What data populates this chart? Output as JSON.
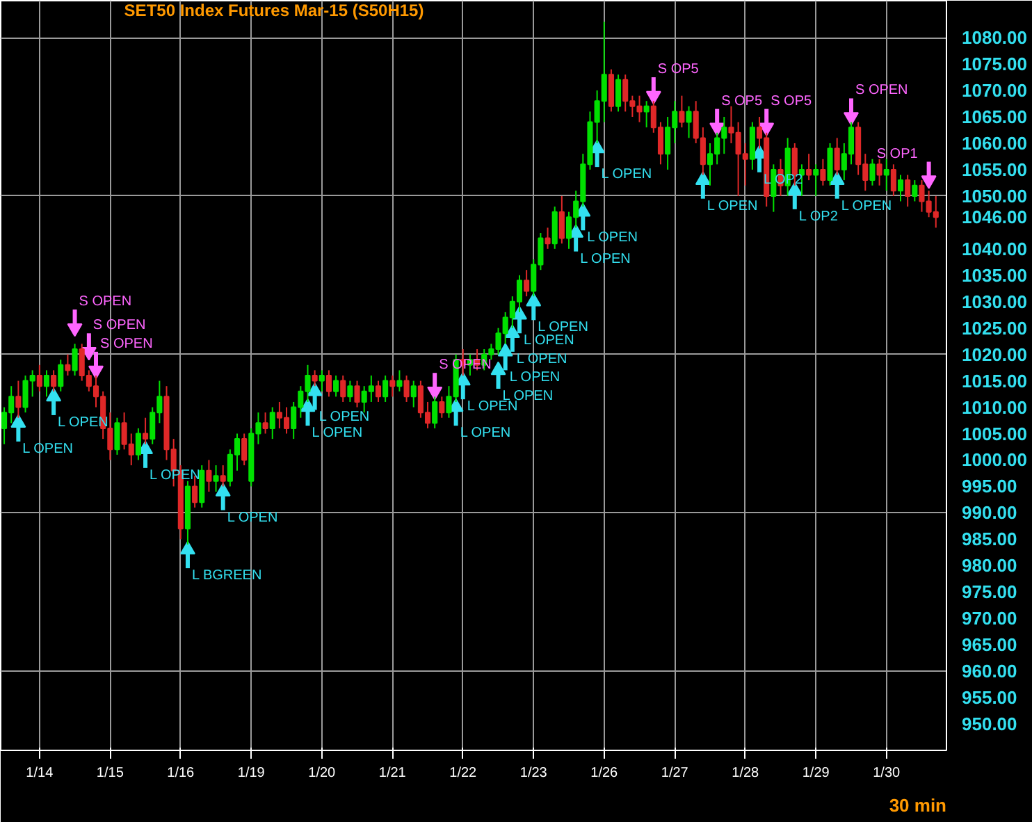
{
  "chart_data": {
    "type": "candlestick",
    "title": "SET50  Index Futures Mar-15  (S50H15)",
    "categories": [
      null,
      null,
      null,
      null,
      null,
      "1/14",
      null,
      null,
      null,
      null,
      null,
      null,
      null,
      null,
      null,
      "1/15",
      null,
      null,
      null,
      null,
      null,
      null,
      null,
      null,
      null,
      "1/16",
      null,
      null,
      null,
      null,
      null,
      null,
      null,
      null,
      null,
      "1/19",
      null,
      null,
      null,
      null,
      null,
      null,
      null,
      null,
      null,
      "1/20",
      null,
      null,
      null,
      null,
      null,
      null,
      null,
      null,
      null,
      "1/21",
      null,
      null,
      null,
      null,
      null,
      null,
      null,
      null,
      null,
      "1/22",
      null,
      null,
      null,
      null,
      null,
      null,
      null,
      null,
      null,
      "1/23",
      null,
      null,
      null,
      null,
      null,
      null,
      null,
      null,
      null,
      "1/26",
      null,
      null,
      null,
      null,
      null,
      null,
      null,
      null,
      null,
      "1/27",
      null,
      null,
      null,
      null,
      null,
      null,
      null,
      null,
      null,
      "1/28",
      null,
      null,
      null,
      null,
      null,
      null,
      null,
      null,
      null,
      "1/29",
      null,
      null,
      null,
      null,
      null,
      null,
      null,
      null,
      null,
      "1/30",
      null,
      null,
      null,
      null,
      null,
      null,
      null
    ],
    "ohlc": [
      [
        1006,
        1010,
        1003,
        1009
      ],
      [
        1009,
        1014,
        1007,
        1012
      ],
      [
        1012,
        1015,
        1008,
        1010
      ],
      [
        1010,
        1016,
        1009,
        1015
      ],
      [
        1015,
        1017,
        1012,
        1016
      ],
      [
        1016,
        1018,
        1013,
        1014
      ],
      [
        1014,
        1017,
        1012,
        1016
      ],
      [
        1016,
        1017,
        1013,
        1014
      ],
      [
        1014,
        1019,
        1013,
        1018
      ],
      [
        1018,
        1020,
        1016,
        1017
      ],
      [
        1017,
        1022,
        1016,
        1021
      ],
      [
        1021,
        1022,
        1015,
        1016
      ],
      [
        1016,
        1017,
        1013,
        1014
      ],
      [
        1014,
        1016,
        1010,
        1012
      ],
      [
        1012,
        1013,
        1004,
        1006
      ],
      [
        1006,
        1009,
        1000,
        1002
      ],
      [
        1002,
        1008,
        1001,
        1007
      ],
      [
        1007,
        1009,
        1002,
        1003
      ],
      [
        1003,
        1005,
        999,
        1001
      ],
      [
        1001,
        1006,
        1000,
        1005
      ],
      [
        1005,
        1008,
        1003,
        1004
      ],
      [
        1004,
        1010,
        1003,
        1009
      ],
      [
        1009,
        1015,
        1007,
        1012
      ],
      [
        1012,
        1014,
        1000,
        1002
      ],
      [
        1002,
        1004,
        995,
        998
      ],
      [
        998,
        999,
        985,
        987
      ],
      [
        987,
        996,
        984,
        995
      ],
      [
        995,
        997,
        991,
        992
      ],
      [
        992,
        999,
        991,
        998
      ],
      [
        998,
        1000,
        994,
        996
      ],
      [
        996,
        999,
        994,
        997
      ],
      [
        997,
        999,
        995,
        996
      ],
      [
        996,
        1002,
        995,
        1001
      ],
      [
        1001,
        1005,
        998,
        1004
      ],
      [
        1004,
        1005,
        999,
        1000
      ],
      [
        996,
        1006,
        995,
        1005
      ],
      [
        1005,
        1009,
        1003,
        1007
      ],
      [
        1007,
        1009,
        1005,
        1006
      ],
      [
        1006,
        1010,
        1004,
        1009
      ],
      [
        1009,
        1011,
        1006,
        1008
      ],
      [
        1008,
        1010,
        1005,
        1006
      ],
      [
        1006,
        1011,
        1004,
        1010
      ],
      [
        1010,
        1014,
        1008,
        1013
      ],
      [
        1013,
        1018,
        1011,
        1016
      ],
      [
        1016,
        1017,
        1014,
        1015
      ],
      [
        1015,
        1017,
        1013,
        1016
      ],
      [
        1016,
        1017,
        1012,
        1013
      ],
      [
        1013,
        1016,
        1012,
        1015
      ],
      [
        1015,
        1016,
        1011,
        1012
      ],
      [
        1012,
        1015,
        1011,
        1014
      ],
      [
        1014,
        1015,
        1010,
        1011
      ],
      [
        1011,
        1014,
        1009,
        1013
      ],
      [
        1013,
        1016,
        1011,
        1014
      ],
      [
        1014,
        1015,
        1011,
        1012
      ],
      [
        1012,
        1016,
        1011,
        1015
      ],
      [
        1015,
        1016,
        1012,
        1014
      ],
      [
        1014,
        1017,
        1013,
        1015
      ],
      [
        1015,
        1016,
        1011,
        1012
      ],
      [
        1012,
        1015,
        1010,
        1014
      ],
      [
        1014,
        1015,
        1008,
        1009
      ],
      [
        1009,
        1011,
        1006,
        1007
      ],
      [
        1007,
        1012,
        1006,
        1011
      ],
      [
        1011,
        1012,
        1008,
        1009
      ],
      [
        1009,
        1014,
        1008,
        1012
      ],
      [
        1012,
        1020,
        1011,
        1019
      ],
      [
        1019,
        1021,
        1016,
        1018
      ],
      [
        1018,
        1020,
        1016,
        1019
      ],
      [
        1019,
        1021,
        1017,
        1018
      ],
      [
        1018,
        1021,
        1017,
        1020
      ],
      [
        1020,
        1022,
        1019,
        1021
      ],
      [
        1021,
        1025,
        1020,
        1024
      ],
      [
        1024,
        1028,
        1022,
        1027
      ],
      [
        1027,
        1031,
        1025,
        1030
      ],
      [
        1030,
        1035,
        1028,
        1034
      ],
      [
        1034,
        1036,
        1031,
        1032
      ],
      [
        1032,
        1038,
        1031,
        1037
      ],
      [
        1037,
        1043,
        1036,
        1042
      ],
      [
        1042,
        1044,
        1040,
        1041
      ],
      [
        1041,
        1048,
        1040,
        1047
      ],
      [
        1047,
        1050,
        1041,
        1042
      ],
      [
        1042,
        1047,
        1040,
        1046
      ],
      [
        1046,
        1051,
        1044,
        1049
      ],
      [
        1049,
        1058,
        1048,
        1056
      ],
      [
        1056,
        1066,
        1055,
        1064
      ],
      [
        1064,
        1070,
        1060,
        1068
      ],
      [
        1068,
        1083,
        1064,
        1073
      ],
      [
        1073,
        1074,
        1066,
        1067
      ],
      [
        1067,
        1073,
        1066,
        1072
      ],
      [
        1072,
        1073,
        1066,
        1068
      ],
      [
        1068,
        1069,
        1065,
        1067
      ],
      [
        1067,
        1069,
        1064,
        1066
      ],
      [
        1066,
        1068,
        1063,
        1067
      ],
      [
        1067,
        1068,
        1062,
        1063
      ],
      [
        1063,
        1064,
        1056,
        1058
      ],
      [
        1058,
        1065,
        1055,
        1063
      ],
      [
        1063,
        1068,
        1060,
        1066
      ],
      [
        1066,
        1069,
        1063,
        1064
      ],
      [
        1064,
        1067,
        1061,
        1066
      ],
      [
        1066,
        1068,
        1060,
        1061
      ],
      [
        1061,
        1063,
        1054,
        1056
      ],
      [
        1056,
        1060,
        1052,
        1058
      ],
      [
        1058,
        1062,
        1056,
        1061
      ],
      [
        1061,
        1065,
        1058,
        1063
      ],
      [
        1063,
        1067,
        1060,
        1062
      ],
      [
        1062,
        1064,
        1050,
        1058
      ],
      [
        1058,
        1060,
        1052,
        1057
      ],
      [
        1057,
        1064,
        1055,
        1063
      ],
      [
        1063,
        1065,
        1059,
        1061
      ],
      [
        1061,
        1062,
        1048,
        1050
      ],
      [
        1050,
        1056,
        1047,
        1055
      ],
      [
        1055,
        1057,
        1050,
        1052
      ],
      [
        1052,
        1061,
        1050,
        1059
      ],
      [
        1059,
        1060,
        1052,
        1054
      ],
      [
        1054,
        1056,
        1050,
        1055
      ],
      [
        1055,
        1058,
        1053,
        1054
      ],
      [
        1054,
        1056,
        1050,
        1055
      ],
      [
        1055,
        1057,
        1052,
        1053
      ],
      [
        1053,
        1060,
        1052,
        1059
      ],
      [
        1059,
        1061,
        1054,
        1055
      ],
      [
        1055,
        1060,
        1053,
        1058
      ],
      [
        1058,
        1064,
        1056,
        1063
      ],
      [
        1063,
        1064,
        1054,
        1056
      ],
      [
        1056,
        1058,
        1051,
        1053
      ],
      [
        1053,
        1057,
        1052,
        1056
      ],
      [
        1056,
        1057,
        1052,
        1054
      ],
      [
        1054,
        1057,
        1051,
        1055
      ],
      [
        1055,
        1056,
        1050,
        1051
      ],
      [
        1051,
        1054,
        1049,
        1053
      ],
      [
        1053,
        1054,
        1048,
        1050
      ],
      [
        1050,
        1053,
        1049,
        1052
      ],
      [
        1052,
        1053,
        1047,
        1049
      ],
      [
        1049,
        1051,
        1046,
        1047
      ],
      [
        1047,
        1050,
        1044,
        1046
      ]
    ],
    "colors": [
      "#00e000",
      "#00e000",
      "#e02828",
      "#00e000",
      "#00e000",
      "#e02828",
      "#00e000",
      "#e02828",
      "#00e000",
      "#e02828",
      "#00e000",
      "#e02828",
      "#e02828",
      "#e02828",
      "#e02828",
      "#e02828",
      "#00e000",
      "#e02828",
      "#e02828",
      "#00e000",
      "#e02828",
      "#00e000",
      "#00e000",
      "#e02828",
      "#e02828",
      "#e02828",
      "#00e000",
      "#e02828",
      "#00e000",
      "#e02828",
      "#00e000",
      "#e02828",
      "#00e000",
      "#00e000",
      "#e02828",
      "#00e000",
      "#00e000",
      "#e02828",
      "#00e000",
      "#e02828",
      "#e02828",
      "#00e000",
      "#00e000",
      "#00e000",
      "#e02828",
      "#00e000",
      "#e02828",
      "#00e000",
      "#e02828",
      "#00e000",
      "#e02828",
      "#00e000",
      "#00e000",
      "#e02828",
      "#00e000",
      "#e02828",
      "#00e000",
      "#e02828",
      "#00e000",
      "#e02828",
      "#e02828",
      "#00e000",
      "#e02828",
      "#00e000",
      "#00e000",
      "#e02828",
      "#00e000",
      "#e02828",
      "#00e000",
      "#00e000",
      "#00e000",
      "#00e000",
      "#00e000",
      "#00e000",
      "#e02828",
      "#00e000",
      "#00e000",
      "#e02828",
      "#00e000",
      "#e02828",
      "#00e000",
      "#00e000",
      "#00e000",
      "#00e000",
      "#00e000",
      "#00e000",
      "#e02828",
      "#00e000",
      "#e02828",
      "#e02828",
      "#e02828",
      "#00e000",
      "#e02828",
      "#e02828",
      "#00e000",
      "#00e000",
      "#e02828",
      "#00e000",
      "#e02828",
      "#e02828",
      "#00e000",
      "#00e000",
      "#00e000",
      "#e02828",
      "#e02828",
      "#e02828",
      "#00e000",
      "#e02828",
      "#e02828",
      "#00e000",
      "#e02828",
      "#00e000",
      "#e02828",
      "#00e000",
      "#e02828",
      "#00e000",
      "#e02828",
      "#00e000",
      "#e02828",
      "#00e000",
      "#00e000",
      "#e02828",
      "#e02828",
      "#00e000",
      "#e02828",
      "#00e000",
      "#e02828",
      "#00e000",
      "#e02828",
      "#00e000",
      "#e02828",
      "#e02828",
      "#e02828"
    ],
    "series": [
      {
        "type": "scatter",
        "color": "#33e0f0",
        "marker": "triangle",
        "values": [
          null,
          null,
          1007,
          null,
          null,
          null,
          null,
          1012,
          null,
          null,
          null,
          null,
          null,
          null,
          null,
          null,
          null,
          null,
          null,
          null,
          1002,
          null,
          null,
          null,
          null,
          null,
          983,
          null,
          null,
          null,
          null,
          994,
          null,
          null,
          null,
          null,
          null,
          null,
          null,
          null,
          null,
          null,
          null,
          1010,
          1013,
          null,
          null,
          null,
          null,
          null,
          null,
          null,
          null,
          null,
          null,
          null,
          null,
          null,
          null,
          null,
          null,
          null,
          null,
          null,
          1010,
          1015,
          null,
          null,
          null,
          null,
          1017,
          1020.5,
          1024,
          1027.5,
          null,
          1030,
          null,
          null,
          null,
          null,
          null,
          1043,
          1047,
          null,
          1059,
          null,
          null,
          null,
          null,
          null,
          null,
          null,
          null,
          null,
          null,
          null,
          null,
          null,
          null,
          1053,
          null,
          null,
          null,
          null,
          null,
          null,
          null,
          1058,
          null,
          null,
          null,
          null,
          1051,
          null,
          null,
          null,
          null,
          null,
          1053,
          null,
          null,
          null,
          null,
          null,
          null,
          null,
          null,
          null,
          null,
          null,
          null,
          null,
          null
        ],
        "value_labels": [
          null,
          null,
          "L OPEN",
          null,
          null,
          null,
          null,
          "L OPEN",
          null,
          null,
          null,
          null,
          null,
          null,
          null,
          null,
          null,
          null,
          null,
          null,
          "L OPEN",
          null,
          null,
          null,
          null,
          null,
          "L BGREEN",
          null,
          null,
          null,
          null,
          "L OPEN",
          null,
          null,
          null,
          null,
          null,
          null,
          null,
          null,
          null,
          null,
          null,
          "L OPEN",
          "L OPEN",
          null,
          null,
          null,
          null,
          null,
          null,
          null,
          null,
          null,
          null,
          null,
          null,
          null,
          null,
          null,
          null,
          null,
          null,
          null,
          "L OPEN",
          "L OPEN",
          null,
          null,
          null,
          null,
          "L OPEN",
          "L OPEN",
          "L OPEN",
          "L OPEN",
          null,
          "L OPEN",
          null,
          null,
          null,
          null,
          null,
          "L OPEN",
          "L OPEN",
          null,
          "L OPEN",
          null,
          null,
          null,
          null,
          null,
          null,
          null,
          null,
          null,
          null,
          null,
          null,
          null,
          null,
          "L OPEN",
          null,
          null,
          null,
          null,
          null,
          null,
          null,
          "L OP2",
          null,
          null,
          null,
          null,
          "L OP2",
          null,
          null,
          null,
          null,
          null,
          "L OPEN",
          null,
          null,
          null,
          null,
          null,
          null,
          null,
          null,
          null,
          null,
          null,
          null,
          null,
          null
        ]
      },
      {
        "type": "scatter",
        "color": "#ff66ff",
        "marker": "triangle",
        "values": [
          null,
          null,
          null,
          null,
          null,
          null,
          null,
          null,
          null,
          null,
          1025,
          null,
          1020.5,
          1017,
          null,
          null,
          null,
          null,
          null,
          null,
          null,
          null,
          null,
          null,
          null,
          null,
          null,
          null,
          null,
          null,
          null,
          null,
          null,
          null,
          null,
          null,
          null,
          null,
          null,
          null,
          null,
          null,
          null,
          null,
          null,
          null,
          null,
          null,
          null,
          null,
          null,
          null,
          null,
          null,
          null,
          null,
          null,
          null,
          null,
          null,
          null,
          1013,
          null,
          null,
          null,
          null,
          null,
          null,
          null,
          null,
          null,
          null,
          null,
          null,
          null,
          null,
          null,
          null,
          null,
          null,
          null,
          null,
          null,
          null,
          null,
          null,
          null,
          null,
          null,
          null,
          null,
          null,
          1069,
          null,
          null,
          null,
          null,
          null,
          null,
          null,
          null,
          1063,
          null,
          null,
          null,
          null,
          null,
          null,
          1063,
          null,
          null,
          null,
          null,
          null,
          null,
          null,
          null,
          null,
          null,
          null,
          1065,
          null,
          null,
          null,
          null,
          null,
          null,
          null,
          null,
          null,
          null,
          1053,
          null
        ],
        "value_labels": [
          null,
          null,
          null,
          null,
          null,
          null,
          null,
          null,
          null,
          null,
          "S OPEN",
          null,
          "S OPEN",
          "S OPEN",
          null,
          null,
          null,
          null,
          null,
          null,
          null,
          null,
          null,
          null,
          null,
          null,
          null,
          null,
          null,
          null,
          null,
          null,
          null,
          null,
          null,
          null,
          null,
          null,
          null,
          null,
          null,
          null,
          null,
          null,
          null,
          null,
          null,
          null,
          null,
          null,
          null,
          null,
          null,
          null,
          null,
          null,
          null,
          null,
          null,
          null,
          null,
          "S OPEN",
          null,
          null,
          null,
          null,
          null,
          null,
          null,
          null,
          null,
          null,
          null,
          null,
          null,
          null,
          null,
          null,
          null,
          null,
          null,
          null,
          null,
          null,
          null,
          null,
          null,
          null,
          null,
          null,
          null,
          null,
          "S OP5",
          null,
          null,
          null,
          null,
          null,
          null,
          null,
          null,
          "S OP5",
          null,
          null,
          null,
          null,
          null,
          null,
          "S OP5",
          null,
          null,
          null,
          null,
          null,
          null,
          null,
          null,
          null,
          null,
          null,
          "S OPEN",
          null,
          null,
          null,
          null,
          null,
          null,
          null,
          null,
          null,
          null,
          "S OP1",
          null
        ]
      }
    ],
    "ylim": [
      945,
      1087
    ],
    "yticks": [
      {
        "value": 950,
        "label": "950.00"
      },
      {
        "value": 955,
        "label": "955.00"
      },
      {
        "value": 960,
        "label": "960.00"
      },
      {
        "value": 965,
        "label": "965.00"
      },
      {
        "value": 970,
        "label": "970.00"
      },
      {
        "value": 975,
        "label": "975.00"
      },
      {
        "value": 980,
        "label": "980.00"
      },
      {
        "value": 985,
        "label": "985.00"
      },
      {
        "value": 990,
        "label": "990.00"
      },
      {
        "value": 995,
        "label": "995.00"
      },
      {
        "value": 1000,
        "label": "1000.00"
      },
      {
        "value": 1005,
        "label": "1005.00"
      },
      {
        "value": 1010,
        "label": "1010.00"
      },
      {
        "value": 1015,
        "label": "1015.00"
      },
      {
        "value": 1020,
        "label": "1020.00"
      },
      {
        "value": 1025,
        "label": "1025.00"
      },
      {
        "value": 1030,
        "label": "1030.00"
      },
      {
        "value": 1035,
        "label": "1035.00"
      },
      {
        "value": 1040,
        "label": "1040.00"
      },
      {
        "value": 1046,
        "label": "1046.00"
      },
      {
        "value": 1050,
        "label": "1050.00"
      },
      {
        "value": 1055,
        "label": "1055.00"
      },
      {
        "value": 1060,
        "label": "1060.00"
      },
      {
        "value": 1065,
        "label": "1065.00"
      },
      {
        "value": 1070,
        "label": "1070.00"
      },
      {
        "value": 1075,
        "label": "1075.00"
      },
      {
        "value": 1080,
        "label": "1080.00"
      }
    ],
    "grid": true,
    "annotations": [
      "30 min"
    ]
  }
}
